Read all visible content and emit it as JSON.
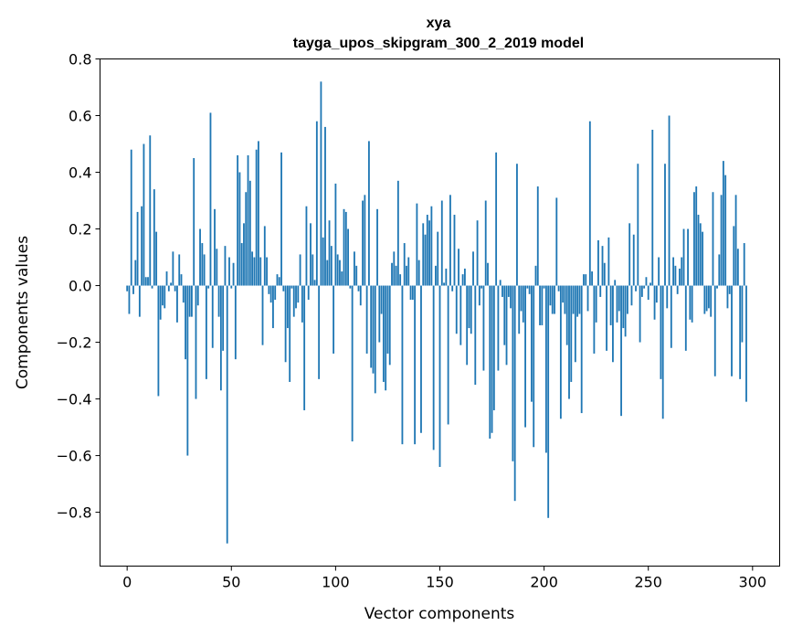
{
  "chart_data": {
    "type": "bar",
    "title": "xya",
    "subtitle": "tayga_upos_skipgram_300_2_2019 model",
    "xlabel": "Vector components",
    "ylabel": "Components values",
    "xlim": [
      -13,
      313
    ],
    "ylim": [
      -0.99,
      0.8
    ],
    "xticks": [
      0,
      50,
      100,
      150,
      200,
      250,
      300
    ],
    "xtick_labels": [
      "0",
      "50",
      "100",
      "150",
      "200",
      "250",
      "300"
    ],
    "yticks": [
      -0.8,
      -0.6,
      -0.4,
      -0.2,
      0.0,
      0.2,
      0.4,
      0.6,
      0.8
    ],
    "ytick_labels": [
      "−0.8",
      "−0.6",
      "−0.4",
      "−0.2",
      "0.0",
      "0.2",
      "0.4",
      "0.6",
      "0.8"
    ],
    "bar_color": "#1f77b4",
    "grid": false,
    "values": [
      -0.02,
      -0.1,
      0.48,
      -0.03,
      0.09,
      0.26,
      -0.11,
      0.28,
      0.5,
      0.03,
      0.03,
      0.53,
      -0.01,
      0.34,
      0.19,
      -0.39,
      -0.12,
      -0.07,
      -0.08,
      0.05,
      -0.02,
      0.01,
      0.12,
      -0.02,
      -0.13,
      0.11,
      0.04,
      -0.06,
      -0.26,
      -0.6,
      -0.11,
      -0.11,
      0.45,
      -0.4,
      -0.07,
      0.2,
      0.15,
      0.11,
      -0.33,
      -0.01,
      0.61,
      -0.22,
      0.27,
      0.13,
      -0.11,
      -0.37,
      -0.23,
      0.14,
      -0.91,
      0.1,
      -0.01,
      0.08,
      -0.26,
      0.46,
      0.4,
      0.15,
      0.22,
      0.33,
      0.46,
      0.37,
      0.12,
      0.1,
      0.48,
      0.51,
      0.1,
      -0.21,
      0.21,
      0.1,
      -0.03,
      -0.06,
      -0.15,
      -0.05,
      0.04,
      0.03,
      0.47,
      -0.02,
      -0.27,
      -0.15,
      -0.34,
      -0.01,
      -0.11,
      -0.08,
      -0.06,
      0.11,
      -0.13,
      -0.44,
      0.28,
      -0.05,
      0.22,
      0.11,
      0.02,
      0.58,
      -0.33,
      0.72,
      0.17,
      0.56,
      0.09,
      0.23,
      0.14,
      -0.24,
      0.36,
      0.11,
      0.09,
      0.05,
      0.27,
      0.26,
      0.2,
      -0.01,
      -0.55,
      0.12,
      0.07,
      -0.02,
      -0.07,
      0.3,
      0.32,
      -0.24,
      0.51,
      -0.29,
      -0.31,
      -0.38,
      0.27,
      -0.2,
      -0.1,
      -0.34,
      -0.37,
      -0.24,
      -0.28,
      0.08,
      0.12,
      0.07,
      0.37,
      0.04,
      -0.56,
      0.15,
      0.07,
      0.1,
      -0.05,
      -0.05,
      -0.56,
      0.29,
      0.09,
      -0.52,
      0.22,
      0.18,
      0.25,
      0.23,
      0.28,
      -0.58,
      0.07,
      0.19,
      -0.64,
      0.3,
      0.01,
      0.06,
      -0.49,
      0.32,
      -0.02,
      0.25,
      -0.17,
      0.13,
      -0.21,
      0.04,
      0.06,
      -0.28,
      -0.15,
      -0.17,
      0.12,
      -0.35,
      0.23,
      -0.07,
      -0.01,
      -0.3,
      0.3,
      0.08,
      -0.54,
      -0.52,
      -0.44,
      0.47,
      -0.3,
      0.02,
      -0.04,
      -0.21,
      -0.28,
      -0.04,
      -0.08,
      -0.62,
      -0.76,
      0.43,
      -0.17,
      -0.09,
      -0.13,
      -0.5,
      -0.01,
      -0.03,
      -0.41,
      -0.57,
      0.07,
      0.35,
      -0.14,
      -0.14,
      -0.01,
      -0.59,
      -0.82,
      -0.07,
      -0.1,
      -0.1,
      0.31,
      -0.02,
      -0.47,
      -0.06,
      -0.1,
      -0.21,
      -0.4,
      -0.34,
      -0.1,
      -0.27,
      -0.11,
      -0.1,
      -0.45,
      0.04,
      0.04,
      -0.09,
      0.58,
      0.05,
      -0.24,
      -0.13,
      0.16,
      -0.04,
      0.14,
      0.08,
      -0.23,
      0.17,
      -0.14,
      -0.27,
      0.02,
      -0.13,
      -0.09,
      -0.46,
      -0.15,
      -0.18,
      -0.1,
      0.22,
      -0.07,
      0.18,
      -0.02,
      0.43,
      -0.2,
      -0.04,
      -0.01,
      0.03,
      -0.05,
      0.01,
      0.55,
      -0.12,
      -0.06,
      0.1,
      -0.33,
      -0.47,
      0.43,
      -0.08,
      0.6,
      -0.22,
      0.1,
      0.07,
      -0.03,
      0.06,
      0.1,
      0.2,
      -0.23,
      0.2,
      -0.12,
      -0.13,
      0.33,
      0.35,
      0.25,
      0.22,
      0.19,
      -0.1,
      -0.09,
      -0.08,
      -0.11,
      0.33,
      -0.32,
      -0.01,
      0.11,
      0.32,
      0.44,
      0.39,
      -0.08,
      -0.03,
      -0.32,
      0.21,
      0.32,
      0.13,
      -0.33,
      -0.2,
      0.15,
      -0.41
    ]
  }
}
